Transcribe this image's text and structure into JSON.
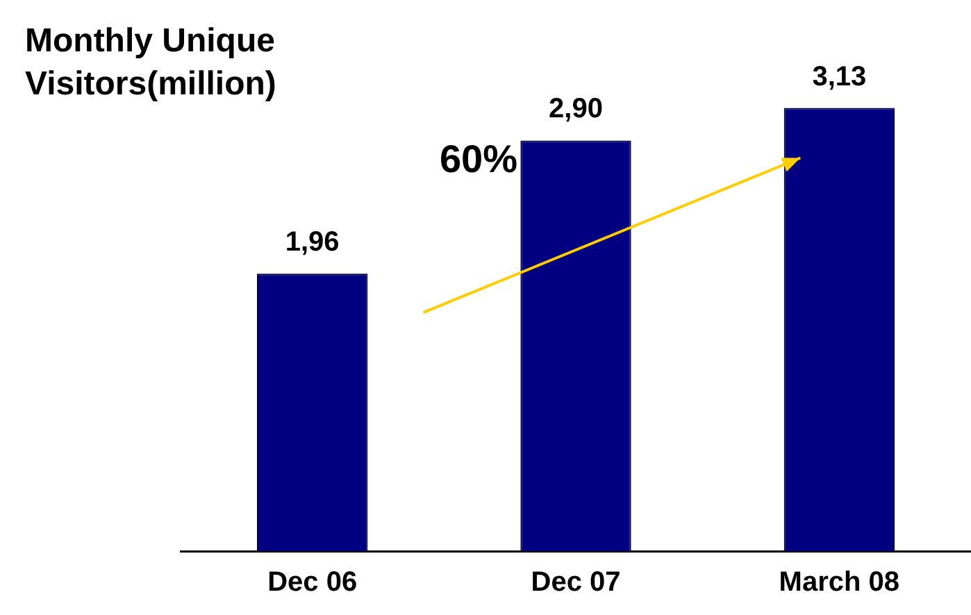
{
  "chart_data": {
    "type": "bar",
    "title": "Monthly Unique Visitors(million)",
    "categories": [
      "Dec 06",
      "Dec 07",
      "March 08"
    ],
    "values": [
      1.96,
      2.9,
      3.13
    ],
    "value_labels": [
      "1,96",
      "2,90",
      "3,13"
    ],
    "color": "#000080",
    "annotations": [
      "60%"
    ],
    "grid": false,
    "legend": false
  }
}
